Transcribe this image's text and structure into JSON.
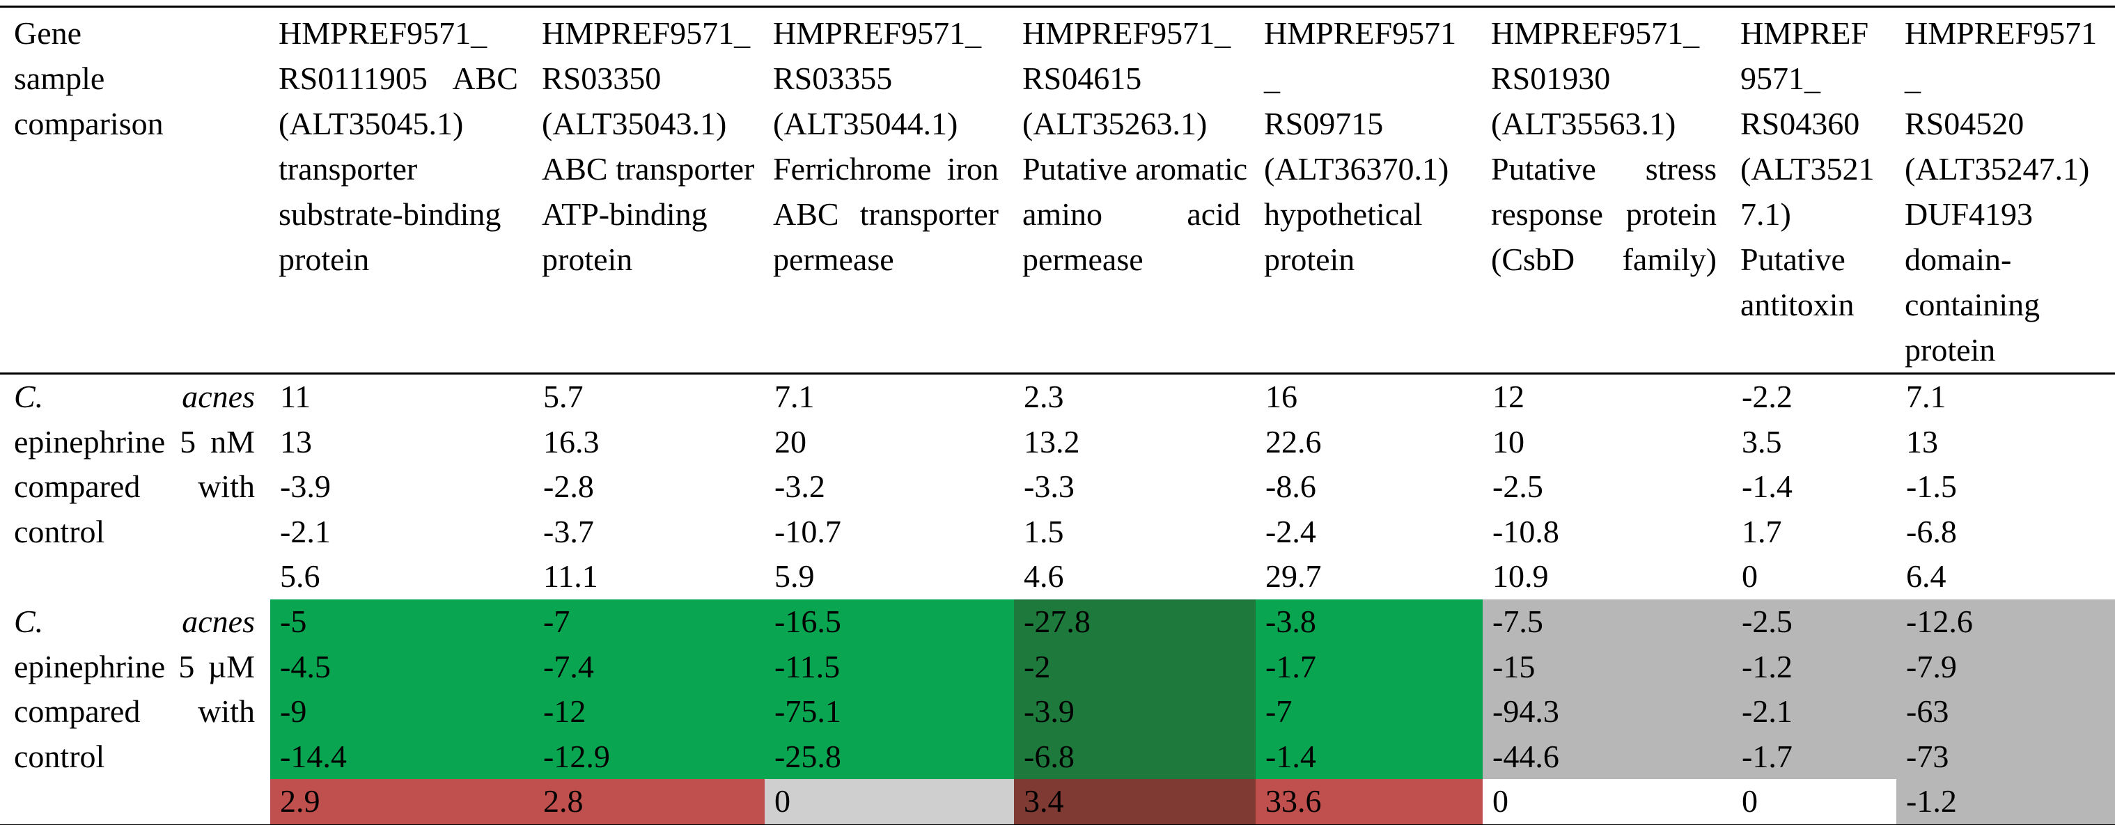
{
  "colors": {
    "green": "#0AA551",
    "darkgreen": "#1E7A3C",
    "gray": "#B7B7B7",
    "lightgray": "#CFCFCF",
    "red": "#C0504D",
    "darkred": "#7F3A33",
    "white": "#FFFFFF",
    "none": ""
  },
  "table": {
    "corner": {
      "lines": [
        "Gene",
        "sample",
        "comparison"
      ]
    },
    "columns": [
      {
        "lines": [
          "HMPREF9571_",
          "RS0111905 ABC",
          "(ALT35045.1)",
          "transporter",
          "substrate-binding",
          "protein"
        ]
      },
      {
        "lines": [
          "HMPREF9571_",
          "RS03350",
          "(ALT35043.1)",
          "ABC transporter",
          "ATP-binding",
          "protein"
        ]
      },
      {
        "lines": [
          "HMPREF9571_",
          "RS03355",
          "(ALT35044.1)",
          "Ferrichrome iron",
          "ABC transporter",
          "permease"
        ]
      },
      {
        "lines": [
          "HMPREF9571_",
          "RS04615",
          "(ALT35263.1)",
          "Putative aromatic",
          "amino acid",
          "permease"
        ]
      },
      {
        "lines": [
          "HMPREF9571",
          "_",
          "RS09715",
          "(ALT36370.1)",
          "hypothetical",
          "protein"
        ]
      },
      {
        "lines": [
          "HMPREF9571_",
          "RS01930",
          "(ALT35563.1)",
          "Putative stress",
          "response protein",
          "(CsbD family)"
        ]
      },
      {
        "lines": [
          "HMPREF",
          "9571_",
          "RS04360",
          "(ALT3521",
          "7.1)",
          "Putative",
          "antitoxin"
        ]
      },
      {
        "lines": [
          "HMPREF9571",
          "_",
          "RS04520",
          "(ALT35247.1)",
          "DUF4193",
          "domain-",
          "containing",
          "protein"
        ]
      }
    ],
    "groups": [
      {
        "label": {
          "lines": [
            "C. acnes",
            "epinephrine 5 nM",
            "compared with",
            "control"
          ]
        },
        "rows": [
          {
            "values": [
              "11",
              "5.7",
              "7.1",
              "2.3",
              "16",
              "12",
              "-2.2",
              "7.1"
            ],
            "bg": [
              "none",
              "none",
              "none",
              "none",
              "none",
              "none",
              "none",
              "none"
            ]
          },
          {
            "values": [
              "13",
              "16.3",
              "20",
              "13.2",
              "22.6",
              "10",
              "3.5",
              "13"
            ],
            "bg": [
              "none",
              "none",
              "none",
              "none",
              "none",
              "none",
              "none",
              "none"
            ]
          },
          {
            "values": [
              "-3.9",
              "-2.8",
              "-3.2",
              "-3.3",
              "-8.6",
              "-2.5",
              "-1.4",
              "-1.5"
            ],
            "bg": [
              "none",
              "none",
              "none",
              "none",
              "none",
              "none",
              "none",
              "none"
            ]
          },
          {
            "values": [
              "-2.1",
              "-3.7",
              "-10.7",
              "1.5",
              "-2.4",
              "-10.8",
              "1.7",
              "-6.8"
            ],
            "bg": [
              "none",
              "none",
              "none",
              "none",
              "none",
              "none",
              "none",
              "none"
            ]
          },
          {
            "values": [
              "5.6",
              "11.1",
              "5.9",
              "4.6",
              "29.7",
              "10.9",
              "0",
              "6.4"
            ],
            "bg": [
              "none",
              "none",
              "none",
              "none",
              "none",
              "none",
              "none",
              "none"
            ]
          }
        ]
      },
      {
        "label": {
          "lines": [
            "C. acnes",
            "epinephrine 5 µM",
            "compared with",
            "control"
          ]
        },
        "rows": [
          {
            "values": [
              "-5",
              "-7",
              "-16.5",
              "-27.8",
              "-3.8",
              "-7.5",
              "-2.5",
              "-12.6"
            ],
            "bg": [
              "green",
              "green",
              "green",
              "darkgreen",
              "green",
              "gray",
              "gray",
              "gray"
            ]
          },
          {
            "values": [
              "-4.5",
              "-7.4",
              "-11.5",
              "-2",
              "-1.7",
              "-15",
              "-1.2",
              "-7.9"
            ],
            "bg": [
              "green",
              "green",
              "green",
              "darkgreen",
              "green",
              "gray",
              "gray",
              "gray"
            ]
          },
          {
            "values": [
              "-9",
              "-12",
              "-75.1",
              "-3.9",
              "-7",
              "-94.3",
              "-2.1",
              "-63"
            ],
            "bg": [
              "green",
              "green",
              "green",
              "darkgreen",
              "green",
              "gray",
              "gray",
              "gray"
            ]
          },
          {
            "values": [
              "-14.4",
              "-12.9",
              "-25.8",
              "-6.8",
              "-1.4",
              "-44.6",
              "-1.7",
              "-73"
            ],
            "bg": [
              "green",
              "green",
              "green",
              "darkgreen",
              "green",
              "gray",
              "gray",
              "gray"
            ]
          },
          {
            "values": [
              "2.9",
              "2.8",
              "0",
              "3.4",
              "33.6",
              "0",
              "0",
              "-1.2"
            ],
            "bg": [
              "red",
              "red",
              "lightgray",
              "darkred",
              "red",
              "white",
              "white",
              "gray"
            ]
          }
        ]
      }
    ]
  }
}
